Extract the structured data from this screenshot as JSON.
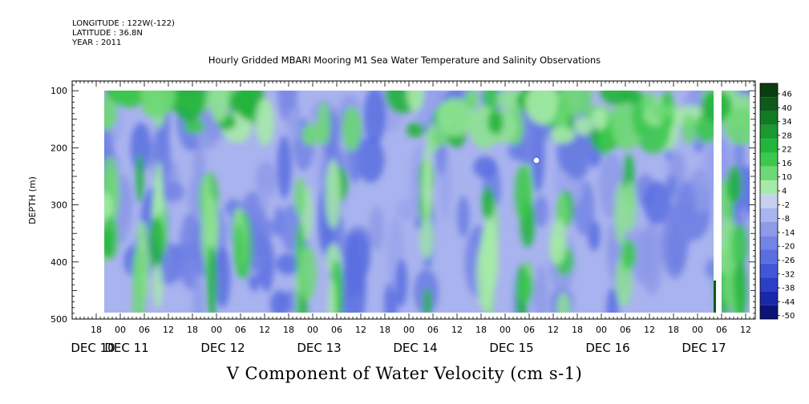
{
  "header": {
    "longitude": "LONGITUDE : 122W(-122)",
    "latitude": "LATITUDE : 36.8N",
    "year": "YEAR : 2011",
    "title": "Hourly Gridded MBARI Mooring M1 Sea Water Temperature and Salinity Observations"
  },
  "chart_data": {
    "type": "heatmap",
    "title": "Hourly Gridded MBARI Mooring M1 Sea Water Temperature and Salinity Observations",
    "xlabel": "V Component of Water Velocity (cm s-1)",
    "ylabel": "DEPTH (m)",
    "ylim": [
      500,
      0
    ],
    "y_ticks": [
      100,
      200,
      300,
      400,
      500
    ],
    "x_hour_ticks": [
      "18",
      "00",
      "06",
      "12",
      "18",
      "00",
      "06",
      "12",
      "18",
      "00",
      "06",
      "12",
      "18",
      "00",
      "06",
      "12",
      "18",
      "00",
      "06",
      "12",
      "18",
      "00",
      "06",
      "12",
      "18",
      "00",
      "06",
      "12",
      "18",
      "00",
      "06",
      "12"
    ],
    "x_date_labels": [
      "DEC 10",
      "DEC 11",
      "DEC 12",
      "DEC 13",
      "DEC 14",
      "DEC 15",
      "DEC 16",
      "DEC 17"
    ],
    "colorbar_levels": [
      "46",
      "40",
      "34",
      "28",
      "22",
      "16",
      "10",
      "4",
      "-2",
      "-8",
      "-14",
      "-20",
      "-26",
      "-32",
      "-38",
      "-44",
      "-50"
    ],
    "colorbar_colors": [
      "#0a3d12",
      "#0d5a1a",
      "#137a24",
      "#1a9a30",
      "#22b43c",
      "#3cc84e",
      "#6ed876",
      "#a6eaa8",
      "#c8d0f0",
      "#aab4ee",
      "#8e9ae8",
      "#7484e4",
      "#5a6ee0",
      "#4256d8",
      "#2c3ec8",
      "#1a28a8",
      "#0c1478"
    ],
    "data_gap": {
      "start": "DEC 17 03",
      "end": "DEC 17 05"
    }
  }
}
